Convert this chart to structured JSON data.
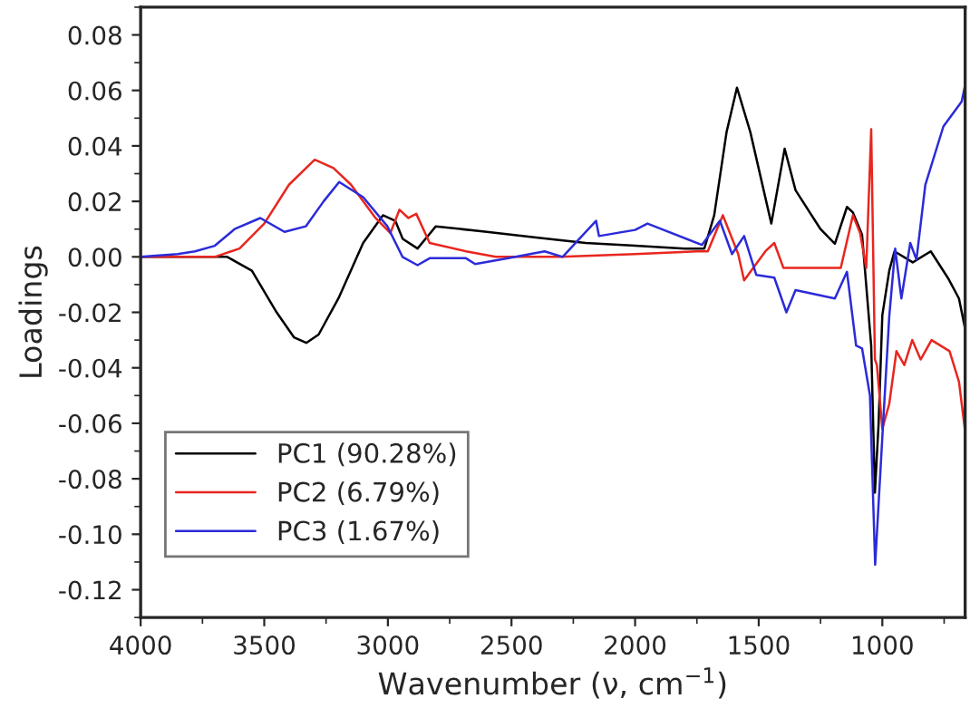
{
  "chart_data": {
    "type": "line",
    "xlabel": "Wavenumber (ν, cm$^{−1}$)",
    "ylabel": "Loadings",
    "xlim": [
      4000,
      665
    ],
    "ylim": [
      -0.13,
      0.09
    ],
    "xticks": [
      4000,
      3500,
      3000,
      2500,
      2000,
      1500,
      1000
    ],
    "yticks": [
      {
        "value": -0.12,
        "label": "-0.12"
      },
      {
        "value": -0.1,
        "label": "-0.10"
      },
      {
        "value": -0.08,
        "label": "-0.08"
      },
      {
        "value": -0.06,
        "label": "-0.06"
      },
      {
        "value": -0.04,
        "label": "-0.04"
      },
      {
        "value": -0.02,
        "label": "-0.02"
      },
      {
        "value": 0,
        "label": "0.00"
      },
      {
        "value": 0.02,
        "label": "0.02"
      },
      {
        "value": 0.04,
        "label": "0.04"
      },
      {
        "value": 0.06,
        "label": "0.06"
      },
      {
        "value": 0.08,
        "label": "0.08"
      }
    ],
    "grid": false,
    "legend": "bottom left",
    "marker": "none",
    "line_style": "solid",
    "series": [
      {
        "name": "PC1 (90.28%)",
        "color": "#000000",
        "x": [
          4000,
          3800,
          3650,
          3550,
          3450,
          3380,
          3330,
          3280,
          3200,
          3100,
          3020,
          2970,
          2940,
          2880,
          2806,
          2600,
          2400,
          2200,
          2000,
          1800,
          1720,
          1680,
          1630,
          1588,
          1534,
          1449,
          1395,
          1351,
          1250,
          1192,
          1143,
          1119,
          1082,
          1045,
          1030,
          1015,
          1000,
          972,
          951,
          877,
          804,
          732,
          690,
          665
        ],
        "values": [
          0,
          0,
          0,
          -0.005,
          -0.02,
          -0.029,
          -0.031,
          -0.028,
          -0.015,
          0.005,
          0.015,
          0.013,
          0.0065,
          0.003,
          0.011,
          0.009,
          0.007,
          0.005,
          0.004,
          0.003,
          0.003,
          0.015,
          0.045,
          0.061,
          0.045,
          0.012,
          0.039,
          0.024,
          0.01,
          0.0047,
          0.018,
          0.016,
          0.008,
          -0.032,
          -0.085,
          -0.06,
          -0.021,
          -0.005,
          0.002,
          -0.002,
          0.002,
          -0.008,
          -0.015,
          -0.026
        ]
      },
      {
        "name": "PC2 (6.79%)",
        "color": "#e8261f",
        "x": [
          4000,
          3800,
          3700,
          3600,
          3500,
          3400,
          3296,
          3220,
          3149,
          3050,
          2990,
          2953,
          2917,
          2885,
          2831,
          2684,
          2564,
          2300,
          2000,
          1750,
          1706,
          1645,
          1583,
          1559,
          1473,
          1437,
          1400,
          1290,
          1168,
          1119,
          1090,
          1065,
          1045,
          1030,
          1022,
          1000,
          972,
          943,
          911,
          879,
          845,
          801,
          728,
          690,
          665
        ],
        "values": [
          0,
          0,
          0,
          0.003,
          0.012,
          0.026,
          0.035,
          0.032,
          0.026,
          0.014,
          0.0086,
          0.017,
          0.014,
          0.0155,
          0.005,
          0.002,
          0.0,
          0.0,
          0.001,
          0.002,
          0.002,
          0.015,
          0.001,
          -0.0085,
          0.002,
          0.005,
          -0.004,
          -0.004,
          -0.004,
          0.015,
          0.0086,
          -0.004,
          0.046,
          -0.037,
          -0.039,
          -0.062,
          -0.053,
          -0.034,
          -0.039,
          -0.03,
          -0.037,
          -0.03,
          -0.034,
          -0.045,
          -0.063
        ]
      },
      {
        "name": "PC3 (1.67%)",
        "color": "#2b2bd9",
        "x": [
          4000,
          3850,
          3780,
          3700,
          3620,
          3516,
          3418,
          3332,
          3260,
          3197,
          3100,
          3002,
          2941,
          2880,
          2831,
          2684,
          2647,
          2513,
          2366,
          2293,
          2158,
          2146,
          2000,
          1950,
          1730,
          1657,
          1608,
          1559,
          1510,
          1437,
          1388,
          1351,
          1192,
          1143,
          1106,
          1082,
          1050,
          1029,
          1000,
          972,
          948,
          923,
          887,
          862,
          826,
          753,
          679,
          665
        ],
        "values": [
          0,
          0.001,
          0.002,
          0.004,
          0.01,
          0.014,
          0.009,
          0.011,
          0.02,
          0.027,
          0.0215,
          0.011,
          0.0,
          -0.003,
          -0.0005,
          -0.0005,
          -0.0026,
          -0.0005,
          0.002,
          0.0,
          0.013,
          0.0075,
          0.0097,
          0.012,
          0.0043,
          0.013,
          0.001,
          0.0075,
          -0.0065,
          -0.0075,
          -0.02,
          -0.012,
          -0.015,
          -0.0054,
          -0.032,
          -0.033,
          -0.05,
          -0.111,
          -0.065,
          -0.0215,
          0.003,
          -0.015,
          0.005,
          -0.001,
          0.026,
          0.047,
          0.056,
          0.062
        ]
      }
    ]
  }
}
